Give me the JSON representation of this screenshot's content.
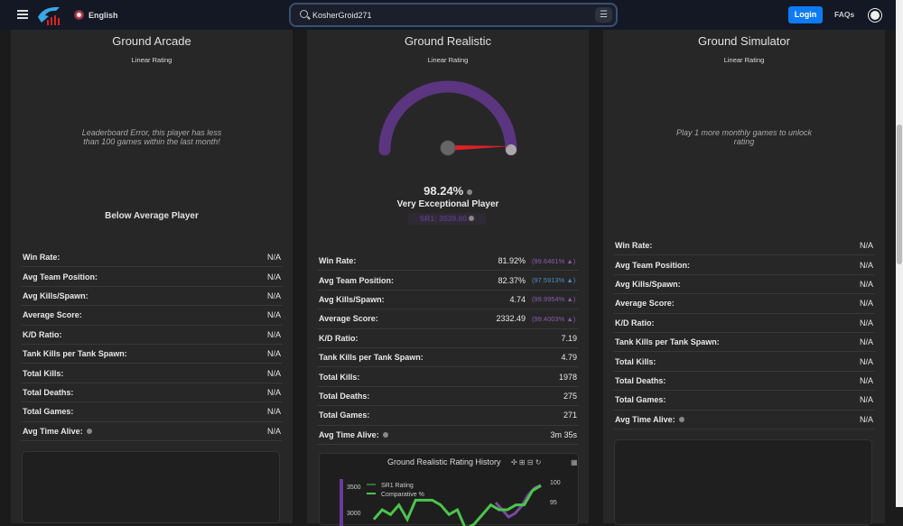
{
  "header": {
    "language": "English",
    "search_value": "KosherGroid271",
    "login": "Login",
    "faqs": "FAQs"
  },
  "icons": {
    "menu": "hamburger-icon",
    "search": "search-icon",
    "filter": "sliders-icon",
    "theme": "sun-icon",
    "info": "info-icon"
  },
  "colors": {
    "accent": "#0d7cf2",
    "gauge": "#5c3580",
    "needle": "#e0202a",
    "green": "#4cc44c",
    "purple": "#7a4aa0",
    "blue": "#4a8fc0"
  },
  "cards": [
    {
      "title": "Ground Arcade",
      "subtitle": "Linear Rating",
      "message": "Leaderboard Error, this player has less than 100 games within the last month!",
      "category": "Below Average Player",
      "rows": [
        [
          "Win Rate:",
          "N/A"
        ],
        [
          "Avg Team Position:",
          "N/A"
        ],
        [
          "Avg Kills/Spawn:",
          "N/A"
        ],
        [
          "Average Score:",
          "N/A"
        ],
        [
          "K/D Ratio:",
          "N/A"
        ],
        [
          "Tank Kills per Tank Spawn:",
          "N/A"
        ],
        [
          "Total Kills:",
          "N/A"
        ],
        [
          "Total Deaths:",
          "N/A"
        ],
        [
          "Total Games:",
          "N/A"
        ],
        [
          "Avg Time Alive:",
          "N/A"
        ]
      ]
    },
    {
      "title": "Ground Realistic",
      "subtitle": "Linear Rating",
      "gauge_percent": 98.24,
      "percent": "98.24%",
      "rank": "Very Exceptional Player",
      "sr": "SR1: 3539.60",
      "rows": [
        [
          "Win Rate:",
          "81.92%",
          "(99.6461% ▲)",
          "purple"
        ],
        [
          "Avg Team Position:",
          "82.37%",
          "(97.5913% ▲)",
          "blue"
        ],
        [
          "Avg Kills/Spawn:",
          "4.74",
          "(99.9954% ▲)",
          "purple"
        ],
        [
          "Average Score:",
          "2332.49",
          "(99.4003% ▲)",
          "purple"
        ],
        [
          "K/D Ratio:",
          "7.19"
        ],
        [
          "Tank Kills per Tank Spawn:",
          "4.79"
        ],
        [
          "Total Kills:",
          "1978"
        ],
        [
          "Total Deaths:",
          "275"
        ],
        [
          "Total Games:",
          "271"
        ],
        [
          "Avg Time Alive:",
          "3m 35s"
        ]
      ],
      "history": {
        "title": "Ground Realistic Rating History",
        "legend": [
          "SR1 Rating",
          "Comparative %"
        ],
        "y_left_ticks": [
          "3500",
          "3000"
        ],
        "y_right_ticks": [
          "100",
          "95"
        ],
        "comparative": [
          93,
          95,
          94,
          96,
          93,
          97,
          97,
          97,
          96,
          94,
          95,
          91,
          92,
          94,
          96,
          95,
          95,
          96,
          96,
          99,
          100
        ],
        "sr1": [
          3300,
          3200,
          3100,
          3150,
          3250,
          3400,
          3500,
          3540
        ]
      }
    },
    {
      "title": "Ground Simulator",
      "subtitle": "Linear Rating",
      "message": "Play 1 more monthly games to unlock rating",
      "rows": [
        [
          "Win Rate:",
          "N/A"
        ],
        [
          "Avg Team Position:",
          "N/A"
        ],
        [
          "Avg Kills/Spawn:",
          "N/A"
        ],
        [
          "Average Score:",
          "N/A"
        ],
        [
          "K/D Ratio:",
          "N/A"
        ],
        [
          "Tank Kills per Tank Spawn:",
          "N/A"
        ],
        [
          "Total Kills:",
          "N/A"
        ],
        [
          "Total Deaths:",
          "N/A"
        ],
        [
          "Total Games:",
          "N/A"
        ],
        [
          "Avg Time Alive:",
          "N/A"
        ]
      ]
    }
  ]
}
